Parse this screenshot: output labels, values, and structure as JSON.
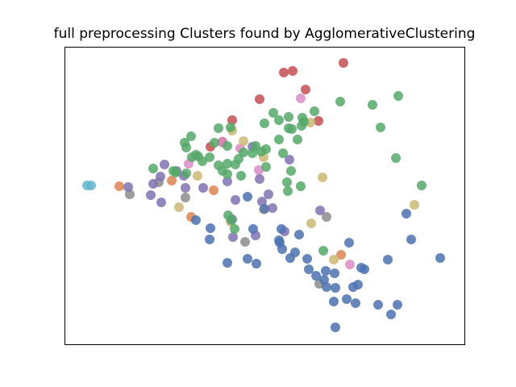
{
  "chart_data": {
    "type": "scatter",
    "title": "full preprocessing Clusters found by AgglomerativeClustering",
    "xlim": [
      0,
      496
    ],
    "ylim": [
      0,
      369
    ],
    "series": [
      {
        "color": "#64b5cd",
        "x": [
          28,
          33
        ],
        "y": [
          197,
          197
        ]
      },
      {
        "color": "#dd8452",
        "x": [
          68,
          133,
          157,
          185,
          343
        ],
        "y": [
          196,
          203,
          158,
          191,
          111
        ]
      },
      {
        "color": "#8c8c8c",
        "x": [
          81,
          150,
          224,
          316,
          325,
          117
        ],
        "y": [
          186,
          182,
          127,
          75,
          158,
          201
        ]
      },
      {
        "color": "#c44e52",
        "x": [
          346,
          272,
          283,
          299,
          242,
          315,
          208,
          181,
          196
        ],
        "y": [
          349,
          337,
          339,
          316,
          304,
          277,
          278,
          245,
          251
        ]
      },
      {
        "color": "#da8bc3",
        "x": [
          293,
          218,
          154,
          241,
          196,
          354
        ],
        "y": [
          305,
          243,
          224,
          216,
          250,
          99
        ]
      },
      {
        "color": "#ccb974",
        "x": [
          208,
          305,
          222,
          247,
          320,
          165,
          306,
          434,
          247,
          334,
          142,
          206
        ],
        "y": [
          265,
          275,
          252,
          232,
          207,
          209,
          150,
          173,
          167,
          105,
          170,
          152
        ]
      },
      {
        "color": "#8172b2",
        "x": [
          79,
          107,
          110,
          120,
          124,
          148,
          150,
          172,
          212,
          202,
          242,
          253,
          245,
          258,
          279,
          273,
          237,
          209,
          208,
          317,
          139,
          233,
          119
        ],
        "y": [
          195,
          185,
          199,
          176,
          223,
          209,
          194,
          194,
          179,
          202,
          205,
          186,
          177,
          169,
          229,
          140,
          135,
          133,
          155,
          166,
          215,
          245,
          208
        ]
      },
      {
        "color": "#4c72b0",
        "x": [
          163,
          181,
          180,
          202,
          227,
          234,
          227,
          238,
          248,
          269,
          266,
          267,
          270,
          280,
          286,
          291,
          301,
          303,
          312,
          324,
          322,
          325,
          335,
          336,
          334,
          336,
          350,
          353,
          361,
          358,
          364,
          368,
          372,
          389,
          405,
          413,
          401,
          430,
          424,
          466
        ],
        "y": [
          154,
          144,
          130,
          101,
          183,
          143,
          106,
          100,
          168,
          143,
          129,
          126,
          118,
          107,
          114,
          136,
          106,
          93,
          85,
          91,
          80,
          71,
          88,
          70,
          53,
          21,
          56,
          126,
          51,
          71,
          74,
          95,
          93,
          49,
          37,
          49,
          105,
          130,
          162,
          107
        ]
      },
      {
        "color": "#55a868",
        "x": [
          157,
          149,
          151,
          163,
          166,
          158,
          110,
          135,
          138,
          151,
          171,
          180,
          186,
          191,
          206,
          202,
          202,
          191,
          196,
          202,
          212,
          216,
          222,
          233,
          237,
          244,
          250,
          248,
          259,
          266,
          278,
          278,
          282,
          295,
          297,
          310,
          294,
          289,
          266,
          271,
          281,
          277,
          293,
          276,
          250,
          219,
          203,
          211,
          207,
          321,
          342,
          382,
          414,
          392,
          411,
          443
        ],
        "y": [
          258,
          250,
          244,
          235,
          233,
          232,
          218,
          215,
          213,
          212,
          227,
          232,
          250,
          268,
          269,
          246,
          224,
          222,
          215,
          211,
          223,
          230,
          238,
          237,
          246,
          239,
          242,
          274,
          287,
          278,
          282,
          268,
          267,
          281,
          276,
          289,
          271,
          254,
          254,
          237,
          215,
          190,
          196,
          201,
          220,
          209,
          160,
          143,
          154,
          116,
          301,
          297,
          308,
          269,
          231,
          197
        ]
      }
    ]
  }
}
